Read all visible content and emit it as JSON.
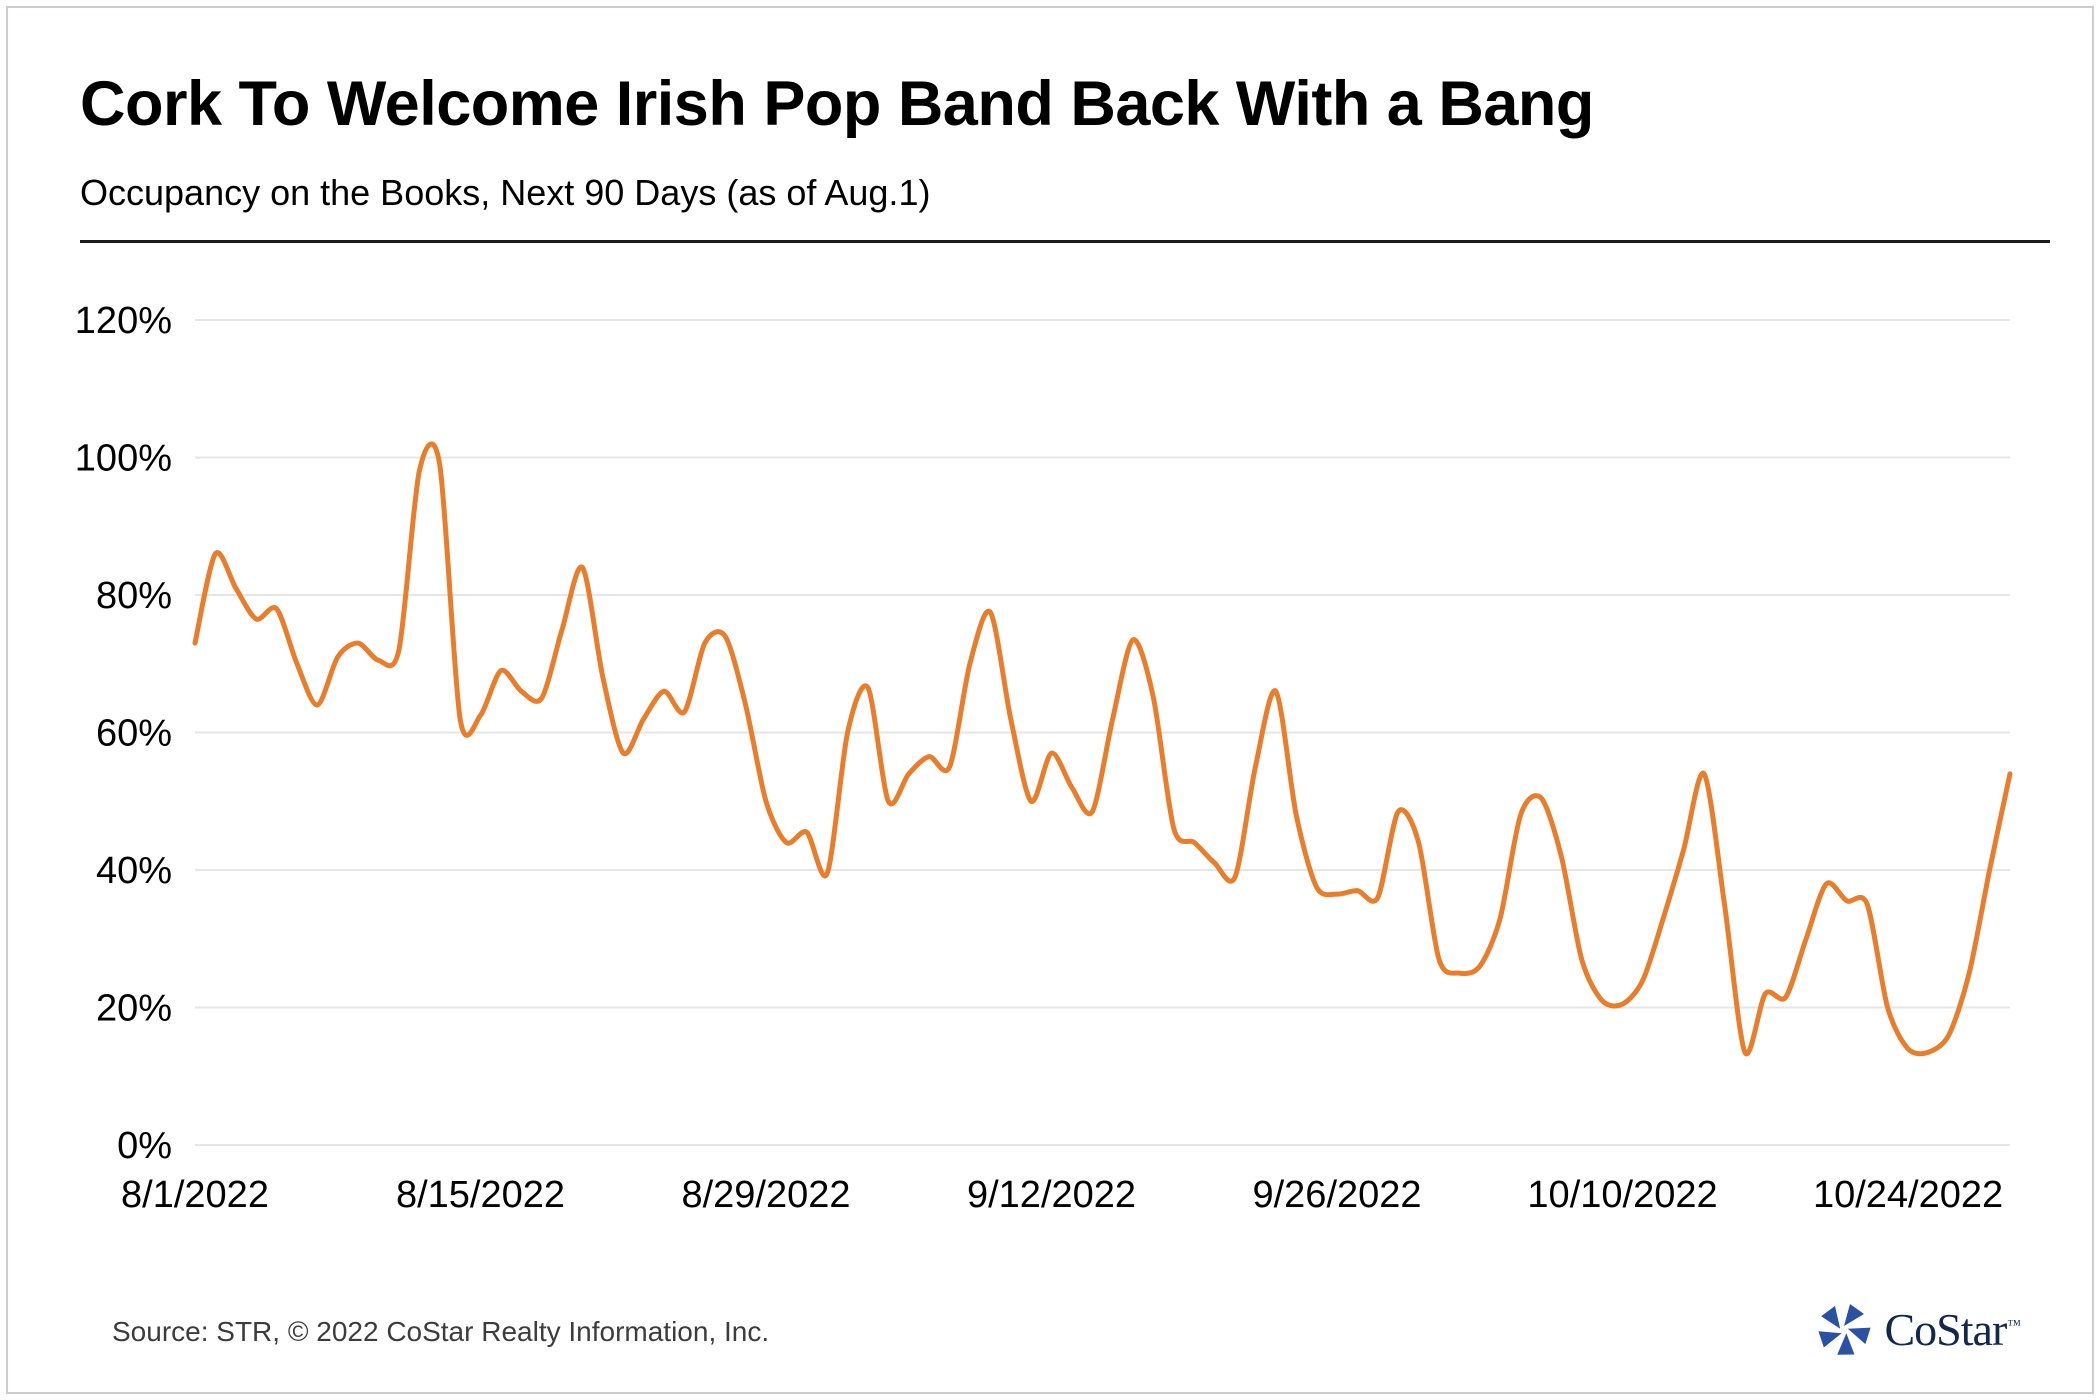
{
  "header": {
    "title": "Cork To Welcome Irish Pop Band Back With a Bang",
    "subtitle": "Occupancy on the Books, Next 90 Days (as of Aug.1)"
  },
  "footer": {
    "source": "Source: STR, © 2022  CoStar Realty Information, Inc.",
    "logo_text": "CoStar",
    "logo_tm": "™"
  },
  "colors": {
    "line": "#E87E2B",
    "grid": "#E6E6E6",
    "divider": "#1A1A1A",
    "tick_text": "#000000",
    "logo_icon_blue": "#2B51A3",
    "logo_text_navy": "#13294B",
    "source_text": "#3C3C3C"
  },
  "chart_data": {
    "type": "line",
    "title": "Cork To Welcome Irish Pop Band Back With a Bang",
    "subtitle": "Occupancy on the Books, Next 90 Days (as of Aug.1)",
    "xlabel": "",
    "ylabel": "",
    "x_unit": "daily dates starting 8/1/2022",
    "x_tick_labels": [
      "8/1/2022",
      "8/15/2022",
      "8/29/2022",
      "9/12/2022",
      "9/26/2022",
      "10/10/2022",
      "10/24/2022"
    ],
    "x_tick_day_indices": [
      0,
      14,
      28,
      42,
      56,
      70,
      84
    ],
    "y_ticks": [
      0,
      20,
      40,
      60,
      80,
      100,
      120
    ],
    "y_tick_labels": [
      "0%",
      "20%",
      "40%",
      "60%",
      "80%",
      "100%",
      "120%"
    ],
    "ylim": [
      0,
      120
    ],
    "grid": "horizontal",
    "legend": "none",
    "series": [
      {
        "name": "Occupancy on the Books (%)",
        "color": "#E87E2B",
        "values": [
          73,
          86,
          81,
          76.5,
          78,
          70,
          64,
          71,
          73,
          70.5,
          72,
          98,
          99,
          62,
          62.5,
          69,
          66,
          65,
          75,
          84,
          68,
          57,
          62,
          66,
          63,
          73,
          74,
          64,
          50,
          44,
          45.5,
          39.5,
          60,
          66.5,
          50,
          54,
          56.5,
          55,
          70,
          77.5,
          62,
          50,
          57,
          52,
          48.5,
          62,
          73.5,
          65,
          46,
          44,
          41,
          39,
          55,
          66,
          48,
          37.5,
          36.5,
          37,
          36,
          48.5,
          44,
          27,
          25,
          26,
          33,
          48,
          50.5,
          42,
          27,
          21,
          20.5,
          24,
          33,
          43,
          54,
          35,
          13.5,
          22,
          21.5,
          30,
          38,
          35.5,
          35,
          20,
          14,
          13.5,
          16,
          25,
          40,
          54
        ]
      }
    ]
  }
}
